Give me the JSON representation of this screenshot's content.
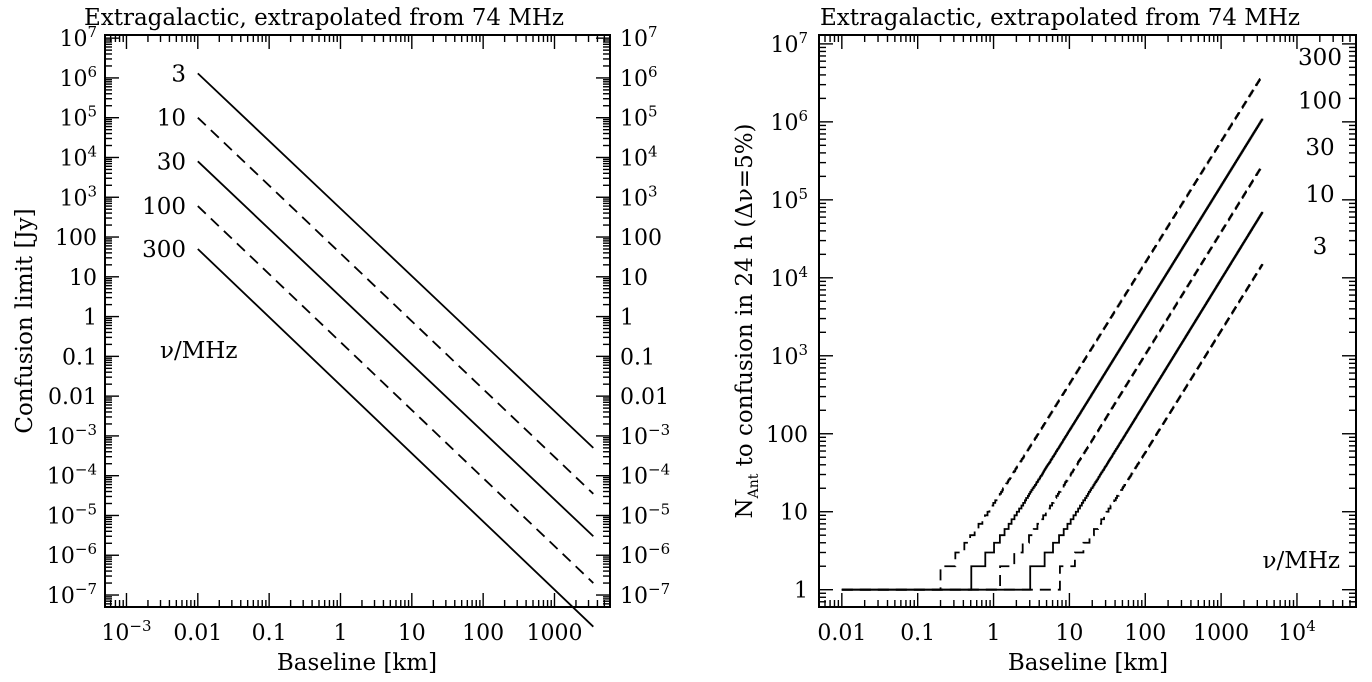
{
  "chart_data": [
    {
      "type": "line",
      "title": "Extragalactic, extrapolated from 74 MHz",
      "xlabel": "Baseline [km]",
      "ylabel": "Confusion limit [Jy]",
      "x_scale": "log",
      "y_scale": "log",
      "xlim": [
        0.0005,
        6000
      ],
      "ylim": [
        5e-08,
        12000000.0
      ],
      "x_ticks": [
        {
          "value": 0.001,
          "base": "10",
          "exp": "−3"
        },
        {
          "value": 0.01,
          "base": "0.01",
          "exp": ""
        },
        {
          "value": 0.1,
          "base": "0.1",
          "exp": ""
        },
        {
          "value": 1,
          "base": "1",
          "exp": ""
        },
        {
          "value": 10,
          "base": "10",
          "exp": ""
        },
        {
          "value": 100,
          "base": "100",
          "exp": ""
        },
        {
          "value": 1000,
          "base": "1000",
          "exp": ""
        }
      ],
      "y_ticks": [
        {
          "value": 10000000.0,
          "base": "10",
          "exp": "7"
        },
        {
          "value": 1000000.0,
          "base": "10",
          "exp": "6"
        },
        {
          "value": 100000.0,
          "base": "10",
          "exp": "5"
        },
        {
          "value": 10000.0,
          "base": "10",
          "exp": "4"
        },
        {
          "value": 1000.0,
          "base": "10",
          "exp": "3"
        },
        {
          "value": 100,
          "base": "100",
          "exp": ""
        },
        {
          "value": 10,
          "base": "10",
          "exp": ""
        },
        {
          "value": 1,
          "base": "1",
          "exp": ""
        },
        {
          "value": 0.1,
          "base": "0.1",
          "exp": ""
        },
        {
          "value": 0.01,
          "base": "0.01",
          "exp": ""
        },
        {
          "value": 0.001,
          "base": "10",
          "exp": "−3"
        },
        {
          "value": 0.0001,
          "base": "10",
          "exp": "−4"
        },
        {
          "value": 1e-05,
          "base": "10",
          "exp": "−5"
        },
        {
          "value": 1e-06,
          "base": "10",
          "exp": "−6"
        },
        {
          "value": 1e-07,
          "base": "10",
          "exp": "−7"
        }
      ],
      "right_y_tick_labels": true,
      "annotation": "ν/MHz",
      "series": [
        {
          "name": "3",
          "style": "solid",
          "x": [
            0.01,
            3500
          ],
          "y": [
            1300000.0,
            0.0005
          ]
        },
        {
          "name": "10",
          "style": "dashed",
          "x": [
            0.01,
            3500
          ],
          "y": [
            100000.0,
            3.5e-05
          ]
        },
        {
          "name": "30",
          "style": "solid",
          "x": [
            0.01,
            3500
          ],
          "y": [
            8000.0,
            3e-06
          ]
        },
        {
          "name": "100",
          "style": "dashed",
          "x": [
            0.01,
            3500
          ],
          "y": [
            600,
            2e-07
          ]
        },
        {
          "name": "300",
          "style": "solid",
          "x": [
            0.01,
            3500
          ],
          "y": [
            50,
            1.6e-08
          ]
        }
      ]
    },
    {
      "type": "line",
      "title": "Extragalactic, extrapolated from 74 MHz",
      "xlabel": "Baseline [km]",
      "ylabel_main": "N",
      "ylabel_sub": "Ant",
      "ylabel_rest": " to confusion in 24 h (Δν=5%)",
      "x_scale": "log",
      "y_scale": "log",
      "xlim": [
        0.005,
        60000
      ],
      "ylim": [
        0.6,
        13000000.0
      ],
      "x_ticks": [
        {
          "value": 0.01,
          "base": "0.01",
          "exp": ""
        },
        {
          "value": 0.1,
          "base": "0.1",
          "exp": ""
        },
        {
          "value": 1,
          "base": "1",
          "exp": ""
        },
        {
          "value": 10,
          "base": "10",
          "exp": ""
        },
        {
          "value": 100,
          "base": "100",
          "exp": ""
        },
        {
          "value": 1000,
          "base": "1000",
          "exp": ""
        },
        {
          "value": 10000,
          "base": "10",
          "exp": "4"
        }
      ],
      "y_ticks": [
        {
          "value": 10000000.0,
          "base": "10",
          "exp": "7"
        },
        {
          "value": 1000000.0,
          "base": "10",
          "exp": "6"
        },
        {
          "value": 100000.0,
          "base": "10",
          "exp": "5"
        },
        {
          "value": 10000.0,
          "base": "10",
          "exp": "4"
        },
        {
          "value": 1000.0,
          "base": "10",
          "exp": "3"
        },
        {
          "value": 100,
          "base": "100",
          "exp": ""
        },
        {
          "value": 10,
          "base": "10",
          "exp": ""
        },
        {
          "value": 1,
          "base": "1",
          "exp": ""
        }
      ],
      "annotation": "ν/MHz",
      "series": [
        {
          "name": "300",
          "style": "dashed",
          "x_start": 0.2,
          "y_end": 4000000.0
        },
        {
          "name": "100",
          "style": "solid",
          "x_start": 0.5,
          "y_end": 1100000.0
        },
        {
          "name": "30",
          "style": "dashed",
          "x_start": 1.2,
          "y_end": 280000.0
        },
        {
          "name": "10",
          "style": "solid",
          "x_start": 3,
          "y_end": 70000.0
        },
        {
          "name": "3",
          "style": "dashed",
          "x_start": 7.5,
          "y_end": 15000.0
        }
      ],
      "x_min": 0.01,
      "x_max": 3500,
      "floor_value": 1
    }
  ]
}
